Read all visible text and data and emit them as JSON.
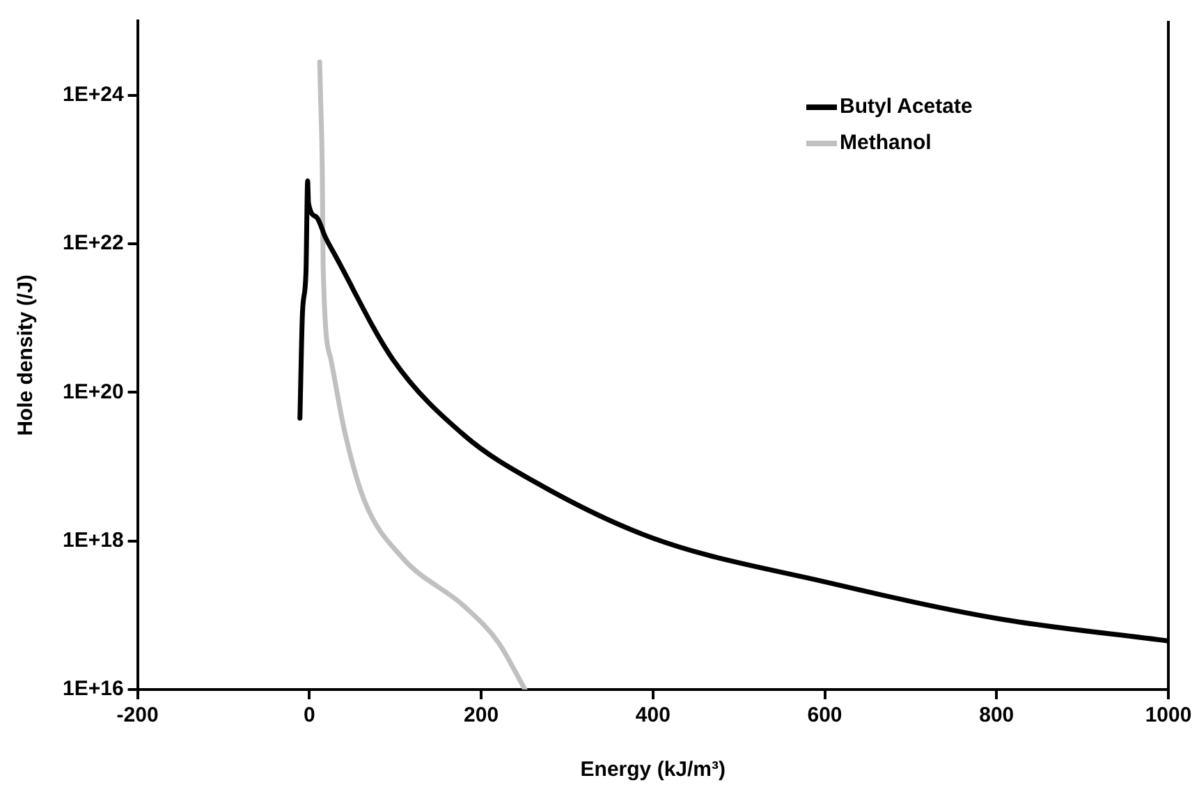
{
  "chart_data": {
    "type": "line",
    "xlabel": "Energy (kJ/m³)",
    "ylabel": "Hole density (/J)",
    "log": "y",
    "grid": false,
    "legend": "top right",
    "marker": "none",
    "line_style": "solid",
    "xlim": [
      -200,
      1000
    ],
    "xticks": [
      -200,
      0,
      200,
      400,
      600,
      800,
      1000
    ],
    "ylim": [
      1e+16,
      1e+25
    ],
    "yticks": [
      {
        "value": 1e+16,
        "label": "1E+16"
      },
      {
        "value": 1e+18,
        "label": "1E+18"
      },
      {
        "value": 1e+20,
        "label": "1E+20"
      },
      {
        "value": 1e+22,
        "label": "1E+22"
      },
      {
        "value": 1e+24,
        "label": "1E+24"
      }
    ],
    "series": [
      {
        "name": "Butyl Acetate",
        "color": "#000000",
        "x": [
          -11,
          -8,
          -4,
          -2,
          -1,
          8,
          19,
          30,
          97,
          181,
          265,
          399,
          601,
          802,
          1000
        ],
        "values": [
          4.5e+19,
          1.2e+21,
          4e+21,
          7e+22,
          3.5e+22,
          2.3e+22,
          1.2e+22,
          7e+21,
          2.8e+20,
          2.6e+19,
          6e+18,
          1.1e+18,
          2.8e+17,
          9e+16,
          4.5e+16
        ]
      },
      {
        "name": "Methanol",
        "color": "#c0c0c0",
        "x": [
          12,
          13,
          15,
          16,
          25,
          41,
          64,
          108,
          181,
          220,
          251
        ],
        "values": [
          2.8e+24,
          1e+24,
          1e+23,
          5e+21,
          2.8e+20,
          3e+19,
          3.5e+18,
          6e+17,
          1.3e+17,
          4.3e+16,
          1e+16
        ]
      }
    ]
  }
}
